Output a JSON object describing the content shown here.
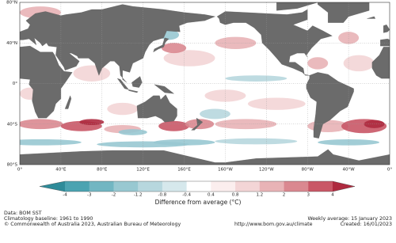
{
  "map": {
    "lat_labels": [
      "80°N",
      "40°N",
      "0°",
      "40°S",
      "80°S"
    ],
    "lon_labels": [
      "0°",
      "40°E",
      "80°E",
      "120°E",
      "160°E",
      "160°W",
      "120°W",
      "80°W",
      "40°W",
      "0°"
    ]
  },
  "legend": {
    "title": "Difference from average (°C)",
    "ticks": [
      -4,
      -3,
      -2,
      -1.2,
      -0.8,
      -0.4,
      0.4,
      0.8,
      1.2,
      2,
      3,
      4
    ],
    "colors": [
      "#2e8b99",
      "#4ba3b1",
      "#72b6c2",
      "#98c8d1",
      "#b7d7de",
      "#d6e8ec",
      "#ffffff",
      "#fbeeee",
      "#f3d5d6",
      "#e8b3b6",
      "#da8890",
      "#c95766",
      "#ae2a3f"
    ]
  },
  "footer": {
    "source": "Data: BOM SST",
    "baseline": "Climatology baseline: 1961 to 1990",
    "copyright": "© Commonwealth of Australia 2023, Australian Bureau of Meteorology",
    "url": "http://www.bom.gov.au/climate",
    "period": "Weekly average: 15 January 2023",
    "created": "Created: 16/01/2023"
  }
}
